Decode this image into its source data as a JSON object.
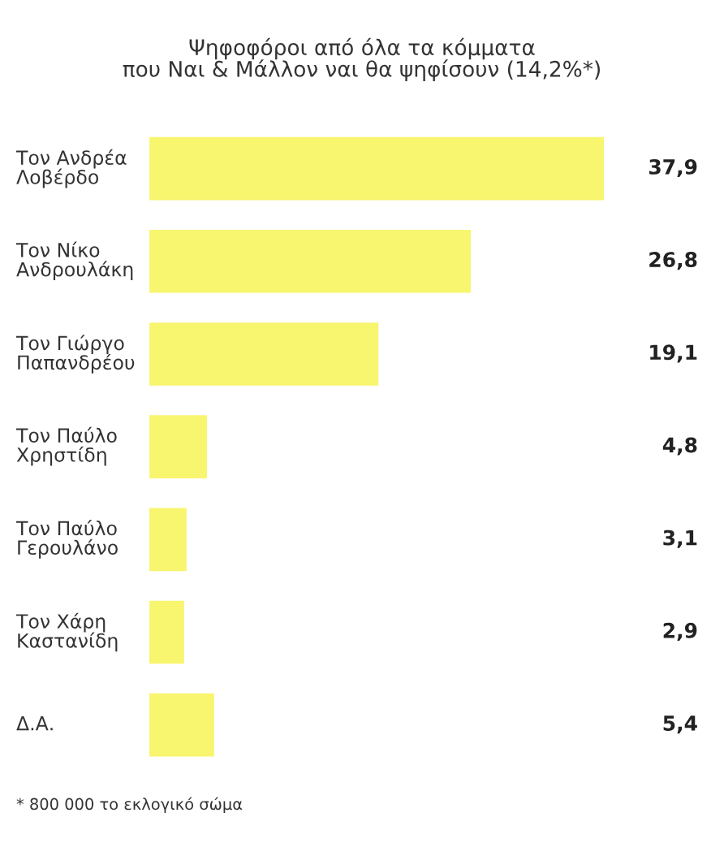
{
  "chart_data": {
    "type": "bar",
    "orientation": "horizontal",
    "title": "Ψηφοφόροι από όλα τα κόμματα\nπου Ναι & Μάλλον ναι θα ψηφίσουν (14,2%*)",
    "categories": [
      "Τον Ανδρέα\nΛοβέρδο",
      "Τον Νίκο\nΑνδρουλάκη",
      "Τον Γιώργο\nΠαπανδρέου",
      "Τον Παύλο\nΧρηστίδη",
      "Τον Παύλο\nΓερουλάνο",
      "Τον Χάρη\nΚαστανίδη",
      "Δ.Α."
    ],
    "values": [
      37.9,
      26.8,
      19.1,
      4.8,
      3.1,
      2.9,
      5.4
    ],
    "value_labels": [
      "37,9",
      "26,8",
      "19,1",
      "4,8",
      "3,1",
      "2,9",
      "5,4"
    ],
    "color": "#f8f56e",
    "annotations": [
      "* 800 000 το εκλογικό σώμα"
    ]
  }
}
